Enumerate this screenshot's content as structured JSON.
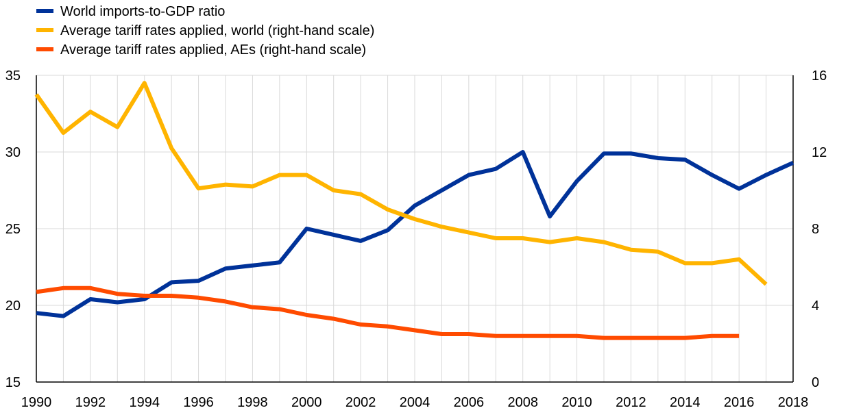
{
  "chart_data": {
    "type": "line",
    "title": "",
    "x_axis": {
      "min": 1990,
      "max": 2018,
      "tick_labels": [
        "1990",
        "1992",
        "1994",
        "1996",
        "1998",
        "2000",
        "2002",
        "2004",
        "2006",
        "2008",
        "2010",
        "2012",
        "2014",
        "2016",
        "2018"
      ]
    },
    "y_axis_left": {
      "min": 15,
      "max": 35,
      "ticks": [
        15,
        20,
        25,
        30,
        35
      ]
    },
    "y_axis_right": {
      "min": 0,
      "max": 16,
      "ticks": [
        0,
        4,
        8,
        12,
        16
      ]
    },
    "grid": "vertical",
    "legend_position": "top-left",
    "series": [
      {
        "name": "World imports-to-GDP ratio",
        "axis": "left",
        "color": "#003299",
        "x": [
          1990,
          1991,
          1992,
          1993,
          1994,
          1995,
          1996,
          1997,
          1998,
          1999,
          2000,
          2001,
          2002,
          2003,
          2004,
          2005,
          2006,
          2007,
          2008,
          2009,
          2010,
          2011,
          2012,
          2013,
          2014,
          2015,
          2016,
          2017,
          2018
        ],
        "values": [
          19.5,
          19.3,
          20.4,
          20.2,
          20.4,
          21.5,
          21.6,
          22.4,
          22.6,
          22.8,
          25.0,
          24.6,
          24.2,
          24.9,
          26.5,
          27.5,
          28.5,
          28.9,
          30.0,
          25.8,
          28.1,
          29.9,
          29.9,
          29.6,
          29.5,
          28.5,
          27.6,
          28.5,
          29.3
        ]
      },
      {
        "name": "Average tariff rates applied, world (right-hand scale)",
        "axis": "right",
        "color": "#ffb400",
        "x": [
          1990,
          1991,
          1992,
          1993,
          1994,
          1995,
          1996,
          1997,
          1998,
          1999,
          2000,
          2001,
          2002,
          2003,
          2004,
          2005,
          2006,
          2007,
          2008,
          2009,
          2010,
          2011,
          2012,
          2013,
          2014,
          2015,
          2016,
          2017
        ],
        "values": [
          15.0,
          13.0,
          14.1,
          13.3,
          15.6,
          12.2,
          10.1,
          10.3,
          10.2,
          10.8,
          10.8,
          10.0,
          9.8,
          9.0,
          8.5,
          8.1,
          7.8,
          7.5,
          7.5,
          7.3,
          7.5,
          7.3,
          6.9,
          6.8,
          6.2,
          6.2,
          6.4,
          5.1
        ]
      },
      {
        "name": "Average tariff rates applied, AEs (right-hand scale)",
        "axis": "right",
        "color": "#ff4b00",
        "x": [
          1990,
          1991,
          1992,
          1993,
          1994,
          1995,
          1996,
          1997,
          1998,
          1999,
          2000,
          2001,
          2002,
          2003,
          2004,
          2005,
          2006,
          2007,
          2008,
          2009,
          2010,
          2011,
          2012,
          2013,
          2014,
          2015,
          2016
        ],
        "values": [
          4.7,
          4.9,
          4.9,
          4.6,
          4.5,
          4.5,
          4.4,
          4.2,
          3.9,
          3.8,
          3.5,
          3.3,
          3.0,
          2.9,
          2.7,
          2.5,
          2.5,
          2.4,
          2.4,
          2.4,
          2.4,
          2.3,
          2.3,
          2.3,
          2.3,
          2.4,
          2.4
        ]
      }
    ]
  }
}
